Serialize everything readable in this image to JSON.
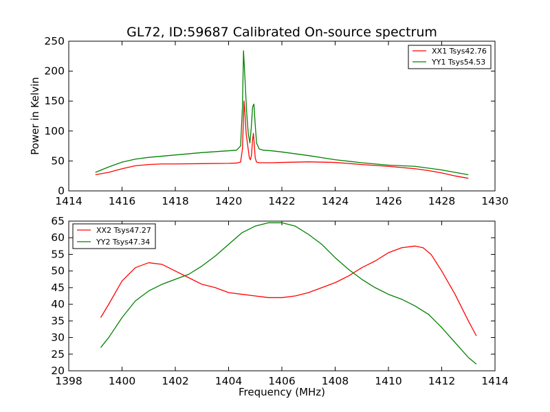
{
  "chart_data": [
    {
      "type": "line",
      "title": "GL72, ID:59687 Calibrated On-source spectrum",
      "xlabel": "",
      "ylabel": "Power in Kelvin",
      "xlim": [
        1414,
        1430
      ],
      "ylim": [
        0,
        250
      ],
      "xticks": [
        1414,
        1416,
        1418,
        1420,
        1422,
        1424,
        1426,
        1428,
        1430
      ],
      "yticks": [
        0,
        50,
        100,
        150,
        200,
        250
      ],
      "legend_position": "top-right",
      "series": [
        {
          "name": "XX1 Tsys42.76",
          "color": "#ff0000",
          "x": [
            1415.0,
            1415.5,
            1416.0,
            1416.5,
            1417.0,
            1417.5,
            1418.0,
            1419.0,
            1420.0,
            1420.3,
            1420.45,
            1420.52,
            1420.58,
            1420.62,
            1420.66,
            1420.72,
            1420.78,
            1420.82,
            1420.86,
            1420.9,
            1420.93,
            1420.96,
            1421.0,
            1421.05,
            1421.15,
            1421.3,
            1421.6,
            1422.0,
            1423.0,
            1424.0,
            1425.0,
            1426.0,
            1427.0,
            1427.5,
            1428.0,
            1428.5,
            1429.0
          ],
          "y": [
            27,
            31,
            37,
            42,
            44,
            45,
            45,
            45.5,
            46,
            46.5,
            48,
            70,
            150,
            125,
            95,
            75,
            55,
            52,
            60,
            85,
            96,
            80,
            55,
            48,
            47,
            47,
            47,
            47.5,
            48.5,
            47.5,
            44,
            41,
            37,
            34,
            30,
            25,
            21
          ]
        },
        {
          "name": "YY1 Tsys54.53",
          "color": "#008000",
          "x": [
            1415.0,
            1415.5,
            1416.0,
            1416.5,
            1417.0,
            1417.5,
            1418.0,
            1419.0,
            1420.0,
            1420.3,
            1420.45,
            1420.52,
            1420.56,
            1420.6,
            1420.64,
            1420.68,
            1420.74,
            1420.8,
            1420.85,
            1420.9,
            1420.95,
            1421.0,
            1421.05,
            1421.15,
            1421.3,
            1421.6,
            1422.0,
            1423.0,
            1424.0,
            1425.0,
            1426.0,
            1427.0,
            1427.5,
            1428.0,
            1428.5,
            1429.0
          ],
          "y": [
            31,
            40,
            48,
            53,
            56,
            58,
            60,
            64,
            67,
            68,
            75,
            140,
            234,
            200,
            165,
            130,
            95,
            80,
            105,
            140,
            145,
            110,
            80,
            70,
            68,
            67,
            65,
            59,
            52,
            47,
            43,
            41,
            38,
            35,
            31,
            27
          ]
        }
      ]
    },
    {
      "type": "line",
      "title": "",
      "xlabel": "Frequency (MHz)",
      "ylabel": "",
      "xlim": [
        1398,
        1414
      ],
      "ylim": [
        20,
        65
      ],
      "xticks": [
        1398,
        1400,
        1402,
        1404,
        1406,
        1408,
        1410,
        1412,
        1414
      ],
      "yticks": [
        20,
        25,
        30,
        35,
        40,
        45,
        50,
        55,
        60,
        65
      ],
      "legend_position": "top-left",
      "series": [
        {
          "name": "XX2 Tsys47.27",
          "color": "#ff0000",
          "x": [
            1399.2,
            1399.5,
            1400.0,
            1400.5,
            1401.0,
            1401.5,
            1402.0,
            1402.5,
            1403.0,
            1403.5,
            1404.0,
            1404.5,
            1405.0,
            1405.5,
            1406.0,
            1406.5,
            1407.0,
            1407.5,
            1408.0,
            1408.5,
            1409.0,
            1409.5,
            1410.0,
            1410.5,
            1411.0,
            1411.3,
            1411.6,
            1412.0,
            1412.5,
            1413.0,
            1413.3
          ],
          "y": [
            36,
            40,
            47,
            51,
            52.5,
            52,
            50,
            48,
            46,
            45,
            43.5,
            43,
            42.5,
            42,
            42,
            42.5,
            43.5,
            45,
            46.5,
            48.5,
            51,
            53,
            55.5,
            57,
            57.5,
            57,
            55,
            50,
            43,
            35,
            30.5
          ]
        },
        {
          "name": "YY2 Tsys47.34",
          "color": "#008000",
          "x": [
            1399.2,
            1399.5,
            1400.0,
            1400.5,
            1401.0,
            1401.5,
            1402.0,
            1402.5,
            1403.0,
            1403.5,
            1404.0,
            1404.5,
            1405.0,
            1405.5,
            1406.0,
            1406.5,
            1407.0,
            1407.5,
            1408.0,
            1408.5,
            1409.0,
            1409.5,
            1410.0,
            1410.5,
            1411.0,
            1411.5,
            1412.0,
            1412.5,
            1413.0,
            1413.3
          ],
          "y": [
            27,
            30,
            36,
            41,
            44,
            46,
            47.5,
            49,
            51.5,
            54.5,
            58,
            61.5,
            63.5,
            64.5,
            64.5,
            63.5,
            61,
            58,
            54,
            50.5,
            47.5,
            45,
            43,
            41.5,
            39.5,
            37,
            33,
            28.5,
            24,
            22
          ]
        }
      ]
    }
  ]
}
